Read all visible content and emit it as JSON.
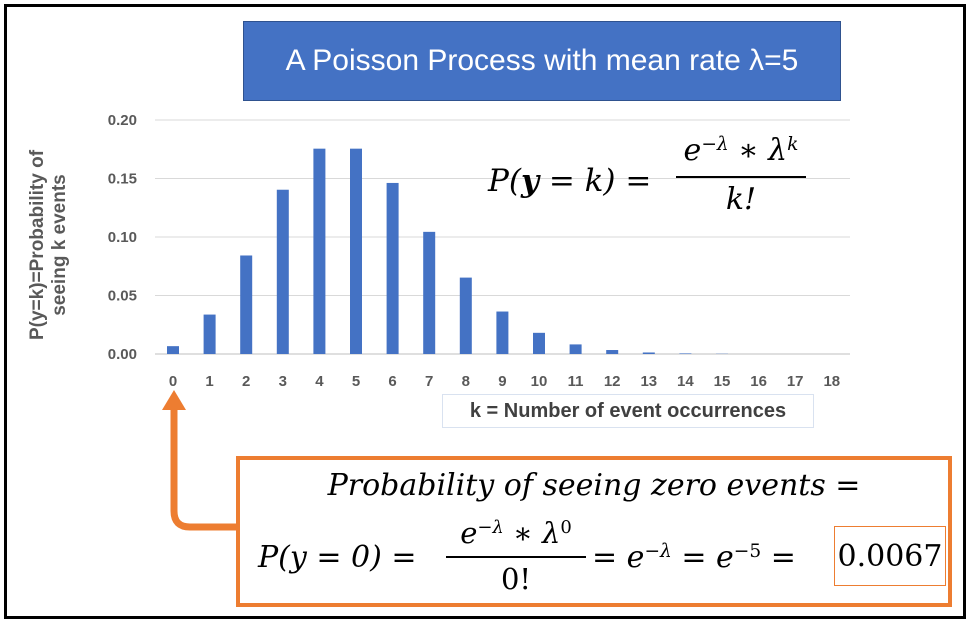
{
  "title": "A  Poisson Process with mean rate λ=5",
  "chart_data": {
    "type": "bar",
    "title": "A  Poisson Process with mean rate λ=5",
    "xlabel": "k = Number of event occurrences",
    "ylabel": "P(y=k)=Probability of seeing k events",
    "categories": [
      "0",
      "1",
      "2",
      "3",
      "4",
      "5",
      "6",
      "7",
      "8",
      "9",
      "10",
      "11",
      "12",
      "13",
      "14",
      "15",
      "16",
      "17",
      "18"
    ],
    "values": [
      0.0067,
      0.0337,
      0.0842,
      0.1404,
      0.1755,
      0.1755,
      0.1462,
      0.1044,
      0.0653,
      0.0363,
      0.0181,
      0.0082,
      0.0034,
      0.0013,
      0.0005,
      0.0002,
      0.0,
      0.0,
      0.0
    ],
    "yticks": [
      "0.00",
      "0.05",
      "0.10",
      "0.15",
      "0.20"
    ],
    "ylim": [
      0,
      0.2
    ],
    "grid": true,
    "color": "#4472c4"
  },
  "formula": {
    "lhs": "P(y = k) =",
    "numerator": "e^(−λ) ∗ λ^k",
    "denominator": "k!"
  },
  "zero_box": {
    "title": "Probability of seeing zero events =",
    "lhs": "P(y = 0) =",
    "numerator": "e^(−λ) ∗ λ^0",
    "denominator": "0!",
    "rhs": "= e^(−λ) = e^(−5) =",
    "result": "0.0067"
  },
  "colors": {
    "title_bg": "#4472c4",
    "bars": "#4472c4",
    "annotation": "#ed7d31"
  }
}
